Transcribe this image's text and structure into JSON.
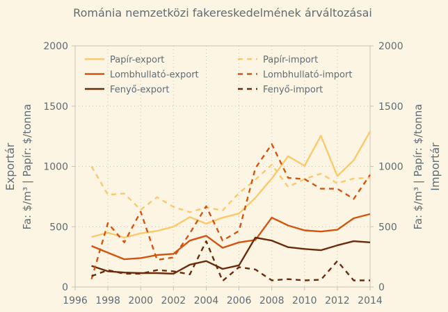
{
  "chart_data": {
    "type": "line",
    "title": "Románia nemzetközi fakereskedelmének árváltozásai",
    "ylabel_left": "Exportár",
    "ylabel_left_unit": "Fa: $/m³ | Papír: $/tonna",
    "ylabel_right": "Importár",
    "ylabel_right_unit": "Fa: $/m³ | Papír: $/tonna",
    "xlim": [
      1996,
      2014
    ],
    "ylim": [
      0,
      2000
    ],
    "xticks": [
      1996,
      1998,
      2000,
      2002,
      2004,
      2006,
      2008,
      2010,
      2012,
      2014
    ],
    "yticks": [
      0,
      500,
      1000,
      1500,
      2000
    ],
    "grid": true,
    "legend_position": "top",
    "x": [
      1997,
      1998,
      1999,
      2000,
      2001,
      2002,
      2003,
      2004,
      2005,
      2006,
      2007,
      2008,
      2009,
      2010,
      2011,
      2012,
      2013,
      2014
    ],
    "series": [
      {
        "name": "Papír-export",
        "color": "#fcc96a",
        "dash": "solid",
        "values": [
          415,
          450,
          410,
          445,
          465,
          500,
          580,
          525,
          575,
          610,
          740,
          900,
          1085,
          1005,
          1255,
          920,
          1050,
          1290
        ]
      },
      {
        "name": "Lombhullató-export",
        "color": "#d4540f",
        "dash": "solid",
        "values": [
          340,
          285,
          230,
          240,
          265,
          275,
          385,
          425,
          325,
          370,
          390,
          575,
          510,
          470,
          460,
          475,
          570,
          605
        ]
      },
      {
        "name": "Fenyő-export",
        "color": "#6b2a0a",
        "dash": "solid",
        "values": [
          175,
          130,
          120,
          115,
          115,
          110,
          185,
          215,
          150,
          180,
          410,
          385,
          330,
          315,
          305,
          345,
          380,
          370
        ]
      },
      {
        "name": "Papír-import",
        "color": "#fcc96a",
        "dash": "dashed",
        "values": [
          1000,
          765,
          775,
          640,
          745,
          665,
          620,
          660,
          635,
          780,
          890,
          1015,
          830,
          895,
          940,
          860,
          900,
          905
        ]
      },
      {
        "name": "Lombhullató-import",
        "color": "#d4540f",
        "dash": "dashed",
        "values": [
          65,
          530,
          370,
          625,
          225,
          245,
          445,
          670,
          385,
          465,
          985,
          1185,
          905,
          895,
          815,
          815,
          730,
          930
        ]
      },
      {
        "name": "Fenyő-import",
        "color": "#6b2a0a",
        "dash": "dashed",
        "values": [
          90,
          140,
          110,
          110,
          140,
          130,
          105,
          380,
          50,
          165,
          145,
          55,
          65,
          55,
          60,
          215,
          55,
          55
        ]
      }
    ]
  }
}
